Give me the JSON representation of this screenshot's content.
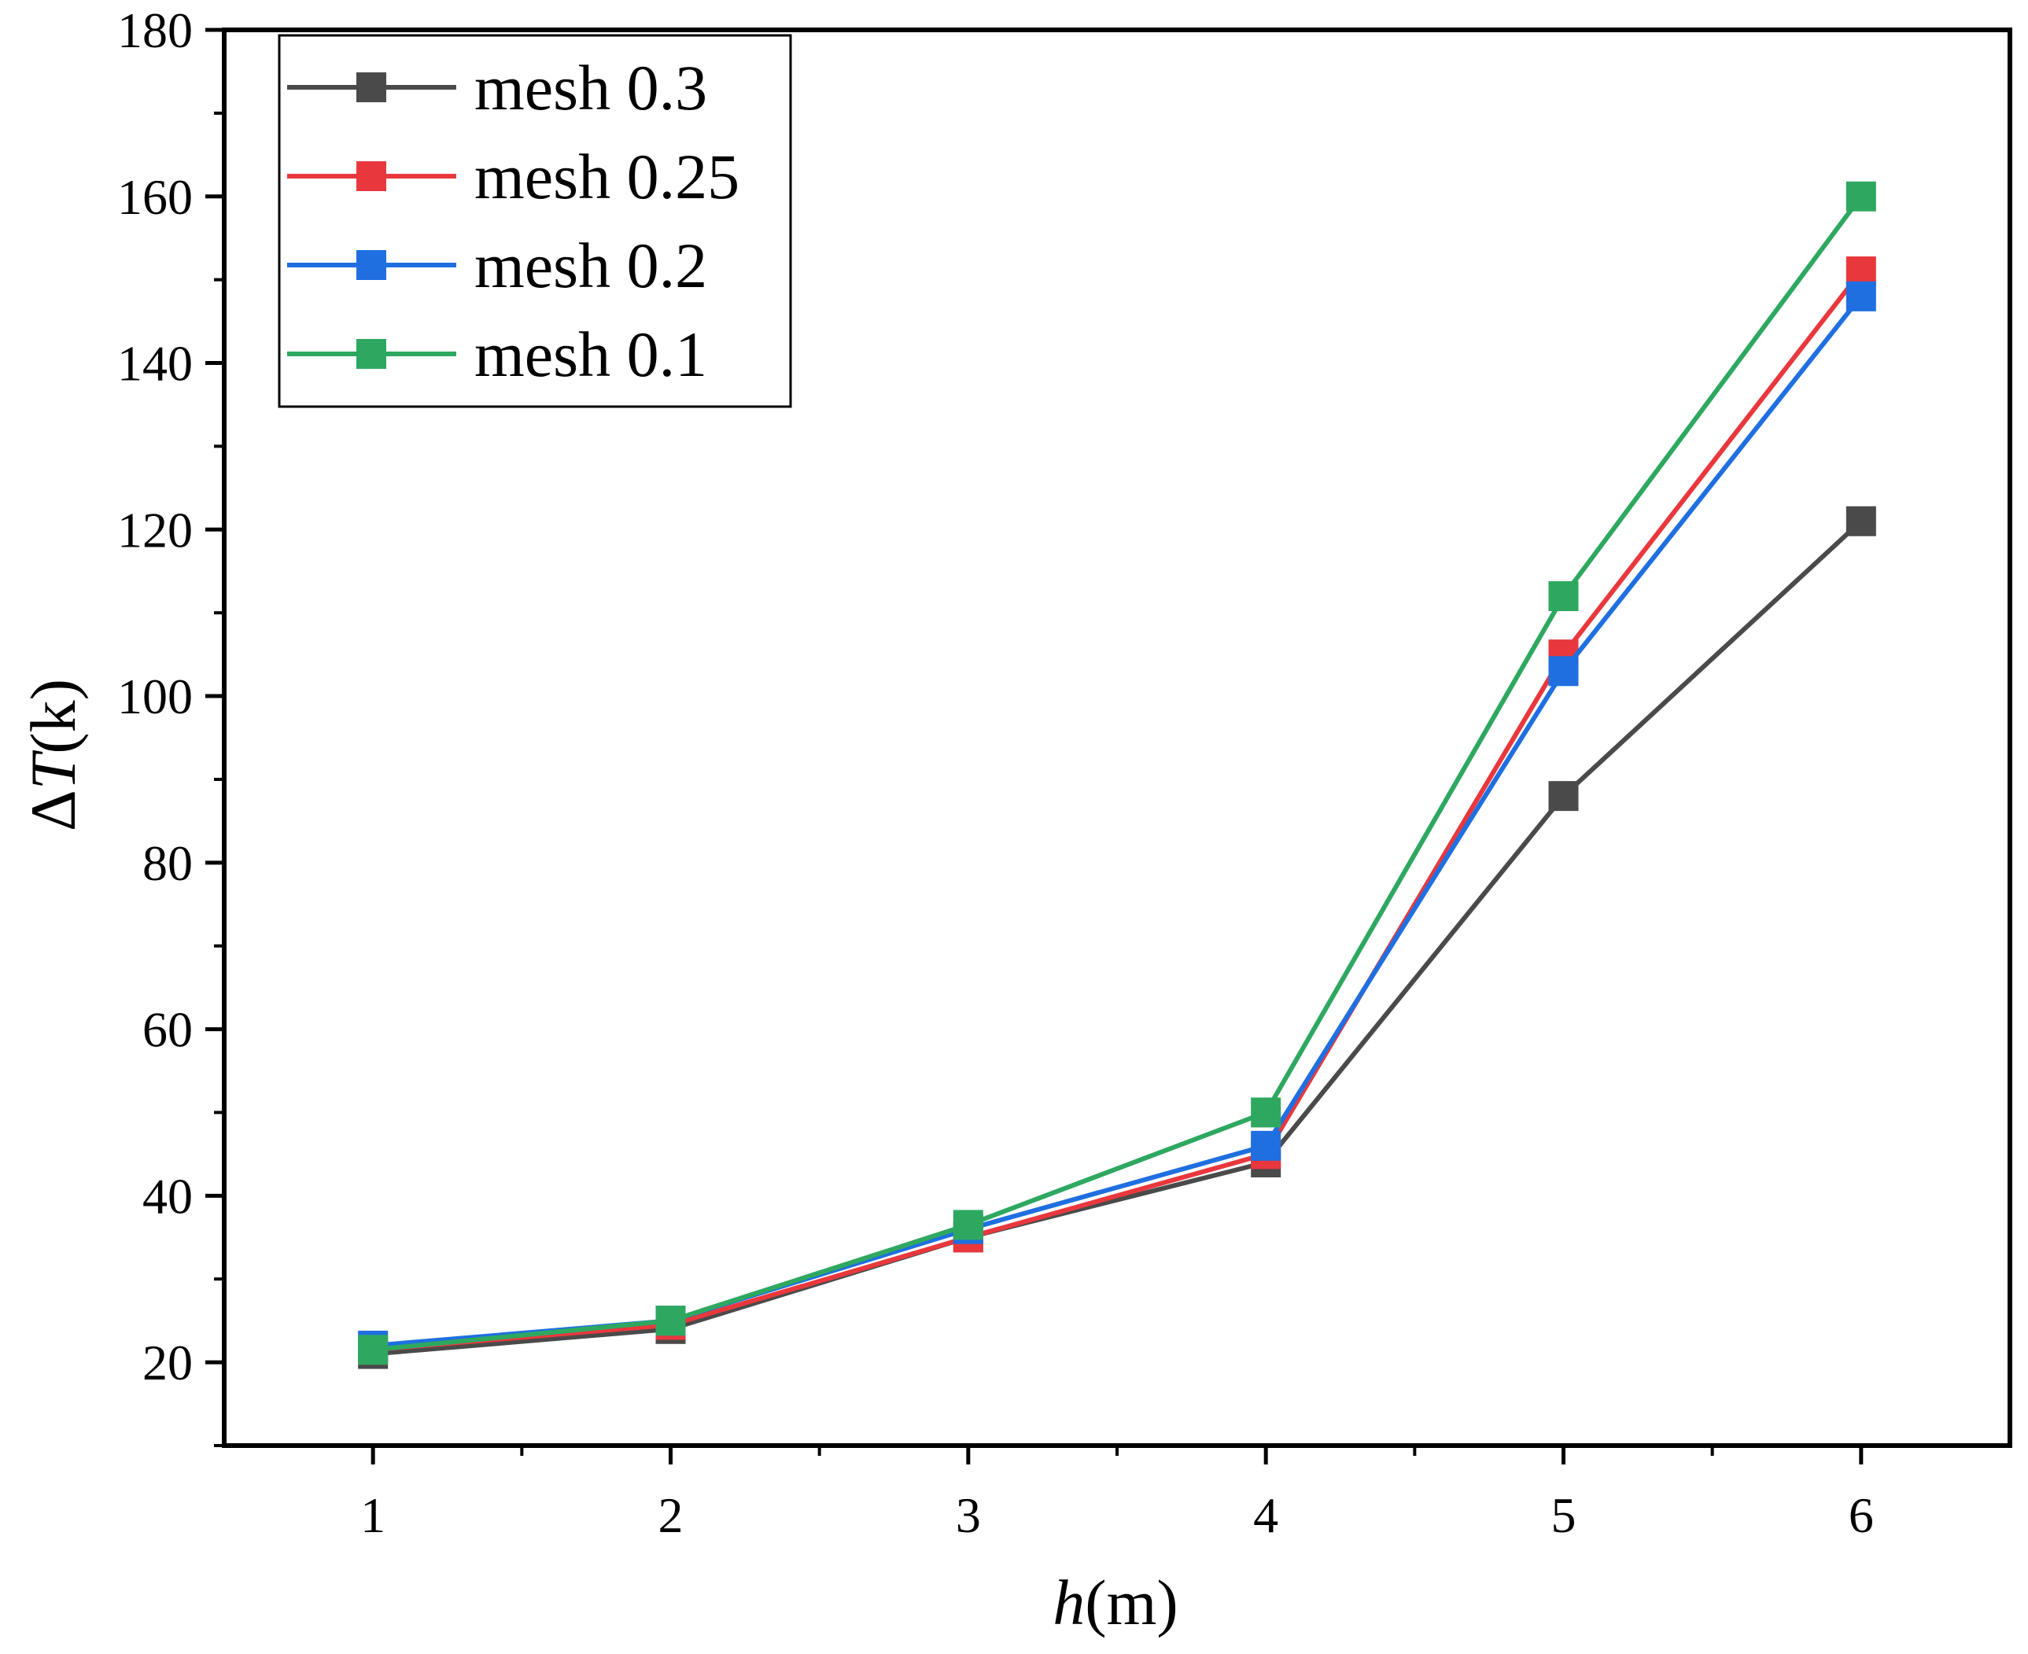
{
  "chart_data": {
    "type": "line",
    "title": "",
    "xlabel": "h(m)",
    "xlabel_var": "h",
    "xlabel_unit": "(m)",
    "ylabel": "ΔT(k)",
    "ylabel_delta": "Δ",
    "ylabel_var": "T",
    "ylabel_unit": "(k)",
    "x": [
      1,
      2,
      3,
      4,
      5,
      6
    ],
    "xlim": [
      0.5,
      6.5
    ],
    "ylim": [
      10,
      180
    ],
    "xticks": [
      1,
      2,
      3,
      4,
      5,
      6
    ],
    "yticks": [
      20,
      40,
      60,
      80,
      100,
      120,
      140,
      160,
      180
    ],
    "grid": false,
    "legend_position": "top-left",
    "series": [
      {
        "name": "mesh 0.3",
        "color": "#4a4a4a",
        "values": [
          21,
          24,
          35,
          44,
          88,
          121
        ]
      },
      {
        "name": "mesh 0.25",
        "color": "#e8383d",
        "values": [
          21.5,
          24.5,
          35,
          45,
          105,
          151
        ]
      },
      {
        "name": "mesh 0.2",
        "color": "#1f6fe0",
        "values": [
          22,
          25,
          36,
          46,
          103,
          148
        ]
      },
      {
        "name": "mesh 0.1",
        "color": "#2ea860",
        "values": [
          21.5,
          25,
          36.5,
          50,
          112,
          160
        ]
      }
    ]
  }
}
